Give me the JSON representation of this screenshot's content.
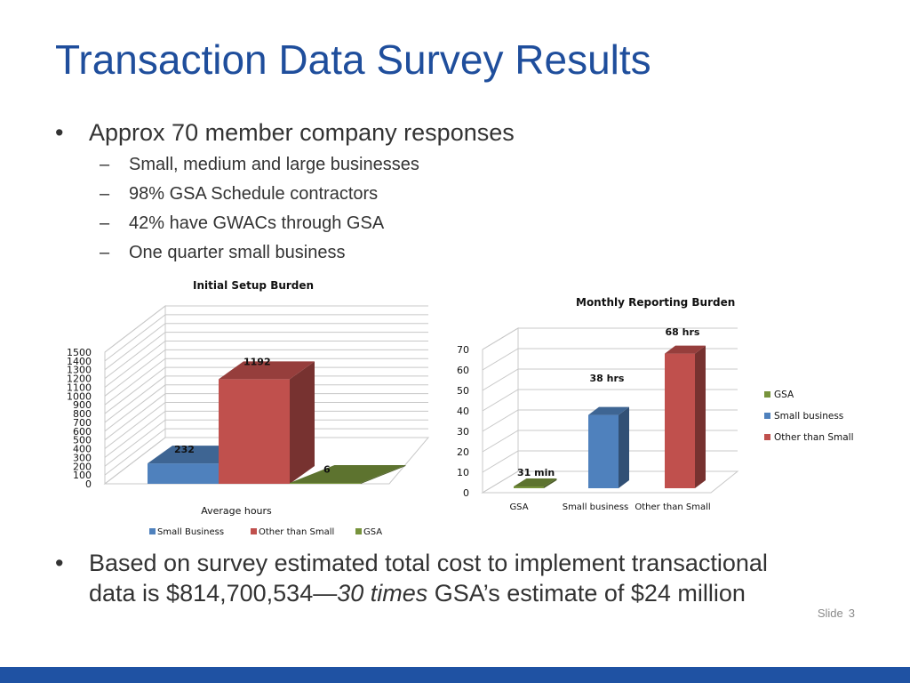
{
  "slide": {
    "title": "Transaction Data Survey Results",
    "bullets": [
      "Approx 70 member company responses"
    ],
    "sub_bullets": [
      "Small, medium and large businesses",
      "98% GSA Schedule contractors",
      "42% have GWACs through GSA",
      "One quarter small business"
    ],
    "bottom_bullet_line1": "Based on survey estimated total cost to implement transactional",
    "bottom_bullet_line2_a": "data is $814,700,534—",
    "bottom_bullet_line2_italic": "30 times",
    "bottom_bullet_line2_b": " GSA’s estimate of $24 million",
    "bullet_glyph": "•",
    "dash_glyph": "–",
    "slide_label": "Slide",
    "slide_number": "3",
    "colors": {
      "title": "#1f4e9c",
      "footer": "#1f52a3",
      "small_business": "#4f81bd",
      "other_than_small": "#c0504d",
      "gsa": "#77933c"
    }
  },
  "chart_data": [
    {
      "type": "bar",
      "title": "Initial Setup Burden",
      "categories": [
        "Average hours"
      ],
      "series": [
        {
          "name": "Small Business",
          "values": [
            232
          ]
        },
        {
          "name": "Other than Small",
          "values": [
            1192
          ]
        },
        {
          "name": "GSA",
          "values": [
            6
          ]
        }
      ],
      "data_labels": [
        "232",
        "1192",
        "6"
      ],
      "ylim": [
        0,
        1500
      ],
      "yticks": [
        "0",
        "100",
        "200",
        "300",
        "400",
        "500",
        "600",
        "700",
        "800",
        "900",
        "1000",
        "1100",
        "1200",
        "1300",
        "1400",
        "1500"
      ],
      "legend": "bottom",
      "grid": true
    },
    {
      "type": "bar",
      "title": "Monthly Reporting Burden",
      "categories": [
        "GSA",
        "Small business",
        "Other than Small"
      ],
      "values": [
        0.52,
        38,
        68
      ],
      "data_labels": [
        "31 min",
        "38 hrs",
        "68 hrs"
      ],
      "ylim": [
        0,
        70
      ],
      "yticks": [
        "0",
        "10",
        "20",
        "30",
        "40",
        "50",
        "60",
        "70"
      ],
      "legend_entries": [
        "GSA",
        "Small business",
        "Other than Small"
      ],
      "legend": "right",
      "grid": true
    }
  ]
}
